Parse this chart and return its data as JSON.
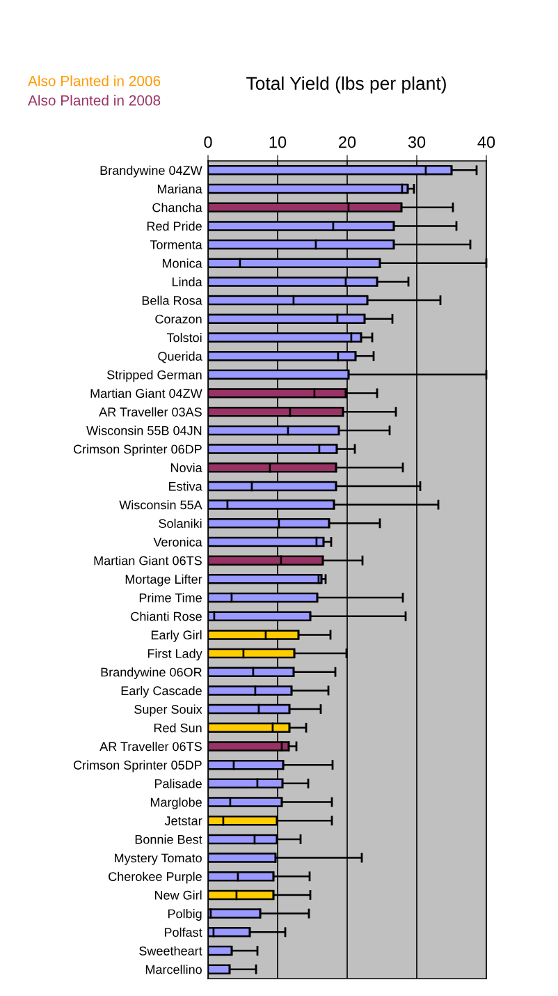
{
  "chart_data": {
    "type": "bar",
    "orientation": "horizontal",
    "stacked": true,
    "title": "Total Yield (lbs per plant)",
    "annotations": [
      "Also Planted in 2006",
      "Also Planted in 2008"
    ],
    "categories": [
      "Brandywine 04ZW",
      "Mariana",
      "Chancha",
      "Red Pride",
      "Tormenta",
      "Monica",
      "Linda",
      "Bella Rosa",
      "Corazon",
      "Tolstoi",
      "Querida",
      "Stripped German",
      "Martian Giant 04ZW",
      "AR Traveller 03AS",
      "Wisconsin 55B 04JN",
      "Crimson Sprinter 06DP",
      "Novia",
      "Estiva",
      "Wisconsin 55A",
      "Solaniki",
      "Veronica",
      "Martian Giant 06TS",
      "Mortage Lifter",
      "Prime Time",
      "Chianti Rose",
      "Early Girl",
      "First Lady",
      "Brandywine 06OR",
      "Early Cascade",
      "Super Souix",
      "Red Sun",
      "AR Traveller 06TS",
      "Crimson Sprinter 05DP",
      "Palisade",
      "Marglobe",
      "Jetstar",
      "Bonnie Best",
      "Mystery Tomato",
      "Cherokee Purple",
      "New Girl",
      "Polbig",
      "Polfast",
      "Sweetheart",
      "Marcellino"
    ],
    "series": [
      {
        "colors": [
          "#9999ff",
          "#9999ff",
          "#993366",
          "#9999ff",
          "#9999ff",
          "#9999ff",
          "#9999ff",
          "#9999ff",
          "#9999ff",
          "#9999ff",
          "#9999ff",
          "#9999ff",
          "#993366",
          "#993366",
          "#9999ff",
          "#9999ff",
          "#993366",
          "#9999ff",
          "#9999ff",
          "#9999ff",
          "#9999ff",
          "#993366",
          "#9999ff",
          "#9999ff",
          "#9999ff",
          "#ffcc00",
          "#ffcc00",
          "#9999ff",
          "#9999ff",
          "#9999ff",
          "#ffcc00",
          "#993366",
          "#9999ff",
          "#9999ff",
          "#9999ff",
          "#ffcc00",
          "#9999ff",
          "#9999ff",
          "#9999ff",
          "#ffcc00",
          "#9999ff",
          "#9999ff",
          "#9999ff",
          "#9999ff"
        ],
        "values": [
          31.3,
          27.9,
          20.2,
          18.0,
          15.5,
          4.6,
          19.8,
          12.3,
          18.6,
          20.6,
          18.7,
          0,
          15.3,
          11.8,
          11.5,
          16.0,
          8.9,
          6.3,
          2.8,
          10.2,
          15.6,
          10.5,
          15.9,
          3.4,
          0.9,
          8.3,
          5.1,
          6.5,
          6.8,
          7.3,
          9.3,
          10.6,
          3.7,
          7.1,
          3.2,
          2.2,
          6.7,
          0,
          4.3,
          4.1,
          0.4,
          0.8,
          0,
          0
        ]
      },
      {
        "colors": [
          "#9999ff",
          "#9999ff",
          "#993366",
          "#9999ff",
          "#9999ff",
          "#9999ff",
          "#9999ff",
          "#9999ff",
          "#9999ff",
          "#9999ff",
          "#9999ff",
          "#9999ff",
          "#993366",
          "#993366",
          "#9999ff",
          "#9999ff",
          "#993366",
          "#9999ff",
          "#9999ff",
          "#9999ff",
          "#9999ff",
          "#993366",
          "#9999ff",
          "#9999ff",
          "#9999ff",
          "#ffcc00",
          "#ffcc00",
          "#9999ff",
          "#9999ff",
          "#9999ff",
          "#ffcc00",
          "#993366",
          "#9999ff",
          "#9999ff",
          "#9999ff",
          "#ffcc00",
          "#9999ff",
          "#9999ff",
          "#9999ff",
          "#ffcc00",
          "#9999ff",
          "#9999ff",
          "#9999ff",
          "#9999ff"
        ],
        "values": [
          3.7,
          0.8,
          7.6,
          8.7,
          11.2,
          20.1,
          4.5,
          10.6,
          3.9,
          1.4,
          2.5,
          20.2,
          4.5,
          7.6,
          7.3,
          2.5,
          9.5,
          12.1,
          15.3,
          7.2,
          1.0,
          6.0,
          0.4,
          12.3,
          13.8,
          4.7,
          7.3,
          5.8,
          5.2,
          4.4,
          2.4,
          1.0,
          7.1,
          3.6,
          7.4,
          7.7,
          3.2,
          9.7,
          5.1,
          5.3,
          7.1,
          5.2,
          3.4,
          3.1
        ],
        "errors": [
          [
            35.0,
            38.6
          ],
          [
            28.7,
            29.6
          ],
          [
            27.8,
            35.2
          ],
          [
            26.7,
            35.7
          ],
          [
            26.7,
            37.7
          ],
          [
            24.7,
            40
          ],
          [
            24.3,
            28.8
          ],
          [
            22.9,
            33.4
          ],
          [
            22.5,
            26.5
          ],
          [
            22.0,
            23.6
          ],
          [
            21.2,
            23.8
          ],
          [
            20.2,
            40
          ],
          [
            19.8,
            24.3
          ],
          [
            19.4,
            27.0
          ],
          [
            18.8,
            26.1
          ],
          [
            18.5,
            21.1
          ],
          [
            18.4,
            28.0
          ],
          [
            18.4,
            30.5
          ],
          [
            18.1,
            33.1
          ],
          [
            17.4,
            24.7
          ],
          [
            16.6,
            17.7
          ],
          [
            16.5,
            22.2
          ],
          [
            16.3,
            16.9
          ],
          [
            15.7,
            28.0
          ],
          [
            14.7,
            28.4
          ],
          [
            13.0,
            17.6
          ],
          [
            12.4,
            19.9
          ],
          [
            12.3,
            18.3
          ],
          [
            12.0,
            17.3
          ],
          [
            11.7,
            16.2
          ],
          [
            11.7,
            14.1
          ],
          [
            11.6,
            12.7
          ],
          [
            10.8,
            17.9
          ],
          [
            10.7,
            14.4
          ],
          [
            10.6,
            17.8
          ],
          [
            9.9,
            17.8
          ],
          [
            9.9,
            13.3
          ],
          [
            9.7,
            22.1
          ],
          [
            9.4,
            14.6
          ],
          [
            9.4,
            14.7
          ],
          [
            7.5,
            14.5
          ],
          [
            6.0,
            11.1
          ],
          [
            3.4,
            7.1
          ],
          [
            3.1,
            6.9
          ]
        ]
      }
    ],
    "xlim": [
      0,
      40
    ],
    "xticks": [
      0,
      10,
      20,
      30,
      40
    ],
    "grid": "x"
  }
}
